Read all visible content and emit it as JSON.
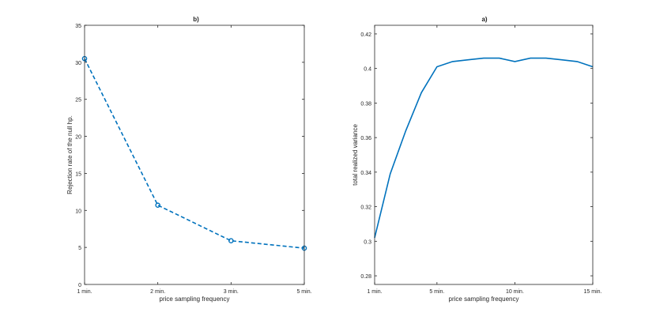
{
  "chart_data": [
    {
      "type": "line",
      "title": "b)",
      "xlabel": "price sampling frequency",
      "ylabel": "Rejection rate of the null hp.",
      "categories": [
        "1 min.",
        "2 min.",
        "3 min.",
        "5 min."
      ],
      "series": [
        {
          "values": [
            30.5,
            10.7,
            5.9,
            4.9
          ],
          "style": "dashed",
          "marker": "circle",
          "color": "#0072BD"
        }
      ],
      "ylim": [
        0,
        35
      ],
      "yticks": [
        0,
        5,
        10,
        15,
        20,
        25,
        30,
        35
      ],
      "grid": false,
      "legend": "none"
    },
    {
      "type": "line",
      "title": "a)",
      "xlabel": "price sampling frequency",
      "ylabel": "total realized variance",
      "x": [
        1,
        2,
        3,
        4,
        5,
        6,
        7,
        8,
        9,
        10,
        11,
        12,
        13,
        14,
        15
      ],
      "xticks": [
        1,
        5,
        10,
        15
      ],
      "xtick_labels": [
        "1 min.",
        "5 min.",
        "10 min.",
        "15 min."
      ],
      "series": [
        {
          "values": [
            0.302,
            0.339,
            0.364,
            0.386,
            0.401,
            0.404,
            0.405,
            0.406,
            0.406,
            0.404,
            0.406,
            0.406,
            0.405,
            0.404,
            0.401
          ],
          "style": "solid",
          "color": "#0072BD"
        }
      ],
      "xlim": [
        1,
        15
      ],
      "ylim": [
        0.275,
        0.425
      ],
      "yticks": [
        0.28,
        0.3,
        0.32,
        0.34,
        0.36,
        0.38,
        0.4,
        0.42
      ],
      "grid": false,
      "legend": "none"
    }
  ]
}
